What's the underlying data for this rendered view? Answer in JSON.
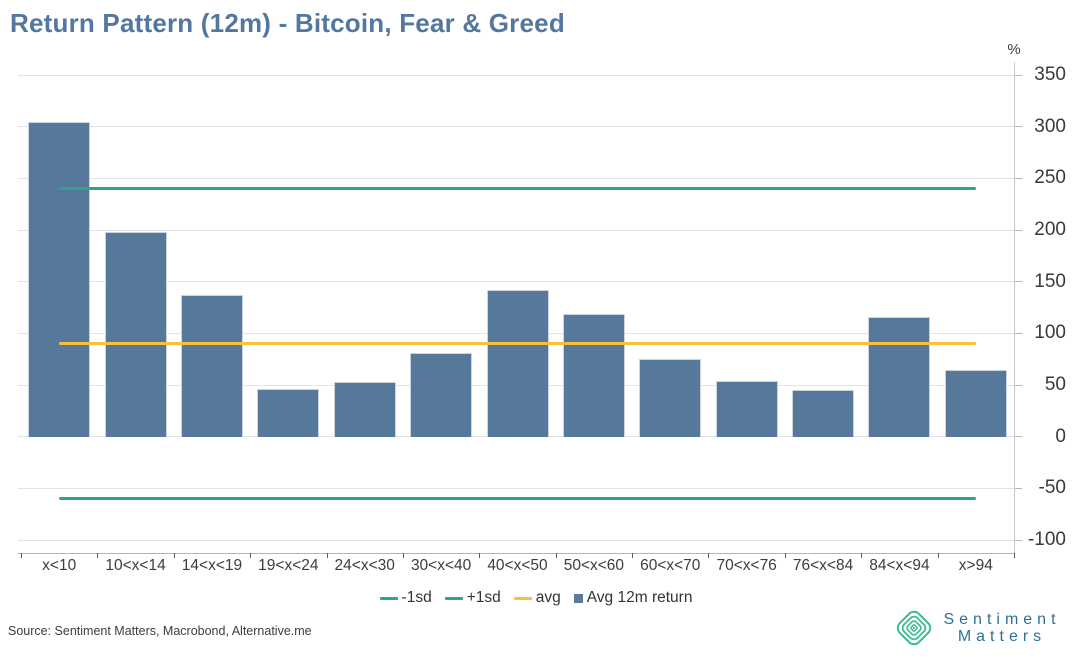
{
  "chart_data": {
    "type": "bar",
    "title": "Return Pattern (12m) - Bitcoin, Fear & Greed",
    "ylabel": "%",
    "xlabel": "",
    "categories": [
      "x<10",
      "10<x<14",
      "14<x<19",
      "19<x<24",
      "24<x<30",
      "30<x<40",
      "40<x<50",
      "50<x<60",
      "60<x<70",
      "70<x<76",
      "76<x<84",
      "84<x<94",
      "x>94"
    ],
    "series": [
      {
        "name": "Avg 12m return",
        "values": [
          305,
          198,
          137,
          46,
          53,
          81,
          142,
          119,
          75,
          54,
          45,
          116,
          65
        ],
        "color": "#56789b"
      }
    ],
    "ref_lines": [
      {
        "name": "-1sd",
        "value": -60,
        "color": "#2fa583"
      },
      {
        "name": "+1sd",
        "value": 240,
        "color": "#2fa583"
      },
      {
        "name": "avg",
        "value": 90,
        "color": "#f8c03c"
      }
    ],
    "ylim": [
      -100,
      350
    ],
    "yticks": [
      350,
      300,
      250,
      200,
      150,
      100,
      50,
      0,
      -50,
      -100
    ],
    "grid": "horizontal",
    "axis_side": "right",
    "legend_position": "bottom"
  },
  "legend": [
    {
      "label": "-1sd",
      "marker": "line",
      "color": "#2fa583"
    },
    {
      "label": "+1sd",
      "marker": "line",
      "color": "#2fa583"
    },
    {
      "label": "avg",
      "marker": "line",
      "color": "#f8c03c"
    },
    {
      "label": "Avg 12m return",
      "marker": "square",
      "color": "#5a7b9c"
    }
  ],
  "footer": {
    "source": "Source: Sentiment Matters, Macrobond, Alternative.me",
    "logo": {
      "line1": "Sentiment",
      "line2": "Matters"
    }
  },
  "colors": {
    "title": "#53779e",
    "bar": "#56789b",
    "grid": "#e4e4e4",
    "text": "#3d3d3d",
    "logo_green": "#3bbd8f",
    "logo_text": "#2d7195"
  }
}
